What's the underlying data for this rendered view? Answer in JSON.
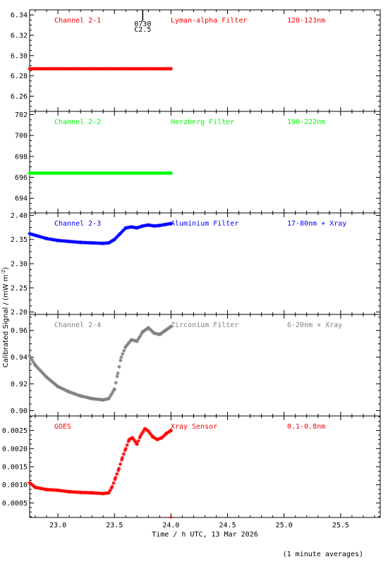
{
  "ylabel": "Calibrated Signal / (mW m",
  "ylabel_sup": "-2",
  "ylabel_close": ")",
  "xlabel": "Time / h UTC, 13 Mar 2026",
  "footnote": "(1 minute averages)",
  "marker": {
    "time_label": "0730",
    "class_label": "C2.5",
    "x": 23.75
  },
  "colors": {
    "red": "#ff0000",
    "green": "#00ff00",
    "blue": "#0000ff",
    "gray": "#808080"
  },
  "chart_data": {
    "type": "scatter",
    "x_range": [
      22.75,
      25.85
    ],
    "x_ticks": [
      "23.0",
      "23.5",
      "24.0",
      "24.5",
      "25.0",
      "25.5"
    ],
    "x_tick_values": [
      23.0,
      23.5,
      24.0,
      24.5,
      25.0,
      25.5
    ],
    "panels": [
      {
        "name": "Channel 2-1",
        "filter": "Lyman-alpha Filter",
        "band": "120-123nm",
        "color": "#ff0000",
        "ylim": [
          6.245,
          6.345
        ],
        "yticks": [
          6.26,
          6.28,
          6.3,
          6.32,
          6.34
        ],
        "ytick_labels": [
          "6.26",
          "6.28",
          "6.30",
          "6.32",
          "6.34"
        ],
        "points": [
          [
            22.75,
            6.287
          ],
          [
            24.0,
            6.287
          ]
        ]
      },
      {
        "name": "Channel 2-2",
        "filter": "Herzberg Filter",
        "band": "190-222nm",
        "color": "#00ff00",
        "ylim": [
          692.6,
          702.3
        ],
        "yticks": [
          694,
          696,
          698,
          700,
          702
        ],
        "ytick_labels": [
          "694",
          "696",
          "698",
          "700",
          "702"
        ],
        "points": [
          [
            22.75,
            696.4
          ],
          [
            24.0,
            696.4
          ]
        ]
      },
      {
        "name": "Channel 2-3",
        "filter": "Aluminium Filter",
        "band": "17-80nm + Xray",
        "color": "#0000ff",
        "ylim": [
          2.195,
          2.405
        ],
        "yticks": [
          2.2,
          2.25,
          2.3,
          2.35,
          2.4
        ],
        "ytick_labels": [
          "2.20",
          "2.25",
          "2.30",
          "2.35",
          "2.40"
        ],
        "points": [
          [
            22.75,
            2.362
          ],
          [
            22.9,
            2.352
          ],
          [
            23.0,
            2.348
          ],
          [
            23.1,
            2.346
          ],
          [
            23.2,
            2.344
          ],
          [
            23.3,
            2.343
          ],
          [
            23.4,
            2.342
          ],
          [
            23.45,
            2.343
          ],
          [
            23.5,
            2.35
          ],
          [
            23.55,
            2.362
          ],
          [
            23.6,
            2.374
          ],
          [
            23.65,
            2.376
          ],
          [
            23.7,
            2.374
          ],
          [
            23.75,
            2.378
          ],
          [
            23.8,
            2.38
          ],
          [
            23.85,
            2.378
          ],
          [
            23.9,
            2.379
          ],
          [
            23.95,
            2.381
          ],
          [
            24.0,
            2.383
          ]
        ]
      },
      {
        "name": "Channel 2-4",
        "filter": "Zirconium Filter",
        "band": "6-20nm + Xray",
        "color": "#808080",
        "ylim": [
          0.896,
          0.972
        ],
        "yticks": [
          0.9,
          0.92,
          0.94,
          0.96
        ],
        "ytick_labels": [
          "0.90",
          "0.92",
          "0.94",
          "0.96"
        ],
        "points": [
          [
            22.75,
            0.941
          ],
          [
            22.8,
            0.934
          ],
          [
            22.9,
            0.925
          ],
          [
            23.0,
            0.918
          ],
          [
            23.1,
            0.914
          ],
          [
            23.2,
            0.911
          ],
          [
            23.3,
            0.909
          ],
          [
            23.4,
            0.908
          ],
          [
            23.45,
            0.909
          ],
          [
            23.5,
            0.916
          ],
          [
            23.53,
            0.928
          ],
          [
            23.56,
            0.94
          ],
          [
            23.6,
            0.948
          ],
          [
            23.65,
            0.953
          ],
          [
            23.7,
            0.952
          ],
          [
            23.75,
            0.959
          ],
          [
            23.8,
            0.962
          ],
          [
            23.85,
            0.958
          ],
          [
            23.9,
            0.957
          ],
          [
            23.95,
            0.96
          ],
          [
            24.0,
            0.963
          ]
        ]
      },
      {
        "name": "GOES",
        "filter": "Xray Sensor",
        "band": "0.1-0.8nm",
        "color": "#ff0000",
        "ylim": [
          0.0001,
          0.0029
        ],
        "yticks": [
          0.0005,
          0.001,
          0.0015,
          0.002,
          0.0025
        ],
        "ytick_labels": [
          "0.0005",
          "0.0010",
          "0.0015",
          "0.0020",
          "0.0025"
        ],
        "points": [
          [
            22.75,
            0.00106
          ],
          [
            22.8,
            0.00093
          ],
          [
            22.9,
            0.00087
          ],
          [
            23.0,
            0.00085
          ],
          [
            23.1,
            0.00081
          ],
          [
            23.2,
            0.00079
          ],
          [
            23.3,
            0.00078
          ],
          [
            23.4,
            0.00076
          ],
          [
            23.45,
            0.00078
          ],
          [
            23.48,
            0.00095
          ],
          [
            23.51,
            0.0012
          ],
          [
            23.54,
            0.00145
          ],
          [
            23.57,
            0.00175
          ],
          [
            23.6,
            0.002
          ],
          [
            23.63,
            0.00225
          ],
          [
            23.66,
            0.0023
          ],
          [
            23.7,
            0.00212
          ],
          [
            23.73,
            0.00235
          ],
          [
            23.77,
            0.00255
          ],
          [
            23.8,
            0.00248
          ],
          [
            23.84,
            0.00232
          ],
          [
            23.88,
            0.00225
          ],
          [
            23.92,
            0.0023
          ],
          [
            23.96,
            0.00242
          ],
          [
            24.0,
            0.0025
          ]
        ]
      }
    ]
  }
}
